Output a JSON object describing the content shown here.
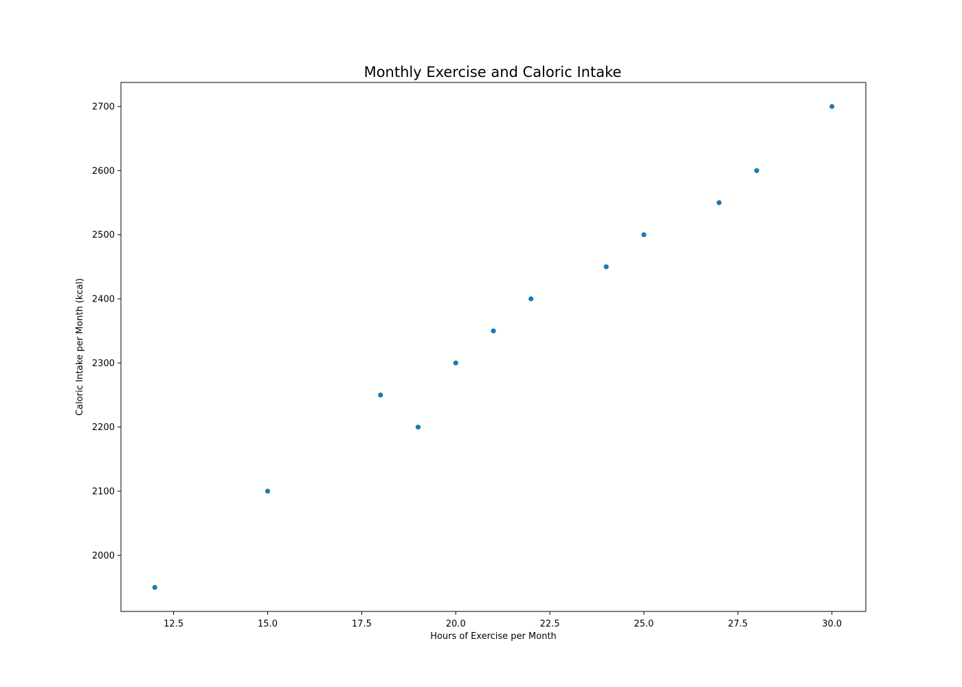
{
  "chart_data": {
    "type": "scatter",
    "title": "Monthly Exercise and Caloric Intake",
    "xlabel": "Hours of Exercise per Month",
    "ylabel": "Caloric Intake per Month (kcal)",
    "x": [
      12,
      15,
      18,
      19,
      20,
      21,
      22,
      24,
      25,
      27,
      28,
      30
    ],
    "y": [
      1950,
      2100,
      2250,
      2200,
      2300,
      2350,
      2400,
      2450,
      2500,
      2550,
      2600,
      2700
    ],
    "xlim": [
      11.1,
      30.9
    ],
    "ylim": [
      1912.5,
      2737.5
    ],
    "xticks": [
      "12.5",
      "15.0",
      "17.5",
      "20.0",
      "22.5",
      "25.0",
      "27.5",
      "30.0"
    ],
    "yticks": [
      "2000",
      "2100",
      "2200",
      "2300",
      "2400",
      "2500",
      "2600",
      "2700"
    ],
    "grid": false,
    "marker_color": "#1f77b4"
  }
}
